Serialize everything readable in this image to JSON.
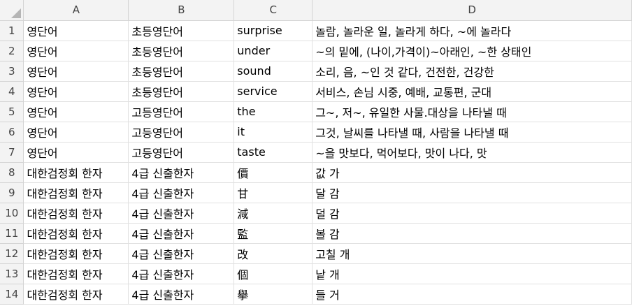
{
  "columns": [
    "A",
    "B",
    "C",
    "D"
  ],
  "rows": [
    {
      "num": "1",
      "a": "영단어",
      "b": "초등영단어",
      "c": "surprise",
      "d": "놀람, 놀라운 일, 놀라게 하다, ~에 놀라다"
    },
    {
      "num": "2",
      "a": "영단어",
      "b": "초등영단어",
      "c": "under",
      "d": "~의 밑에, (나이,가격이)~아래인, ~한 상태인"
    },
    {
      "num": "3",
      "a": "영단어",
      "b": "초등영단어",
      "c": "sound",
      "d": "소리, 음, ~인 것 같다, 건전한, 건강한"
    },
    {
      "num": "4",
      "a": "영단어",
      "b": "초등영단어",
      "c": "service",
      "d": "서비스, 손님 시중, 예배, 교통편, 군대"
    },
    {
      "num": "5",
      "a": "영단어",
      "b": "고등영단어",
      "c": "the",
      "d": "그~, 저~, 유일한 사물.대상을 나타낼 때"
    },
    {
      "num": "6",
      "a": "영단어",
      "b": "고등영단어",
      "c": "it",
      "d": "그것, 날씨를 나타낼 때, 사람을 나타낼 때"
    },
    {
      "num": "7",
      "a": "영단어",
      "b": "고등영단어",
      "c": "taste",
      "d": "~을 맛보다, 먹어보다, 맛이 나다, 맛"
    },
    {
      "num": "8",
      "a": "대한검정회 한자",
      "b": "4급 신출한자",
      "c": "價",
      "d": "값 가"
    },
    {
      "num": "9",
      "a": "대한검정회 한자",
      "b": "4급 신출한자",
      "c": "甘",
      "d": "달 감"
    },
    {
      "num": "10",
      "a": "대한검정회 한자",
      "b": "4급 신출한자",
      "c": "減",
      "d": "덜 감"
    },
    {
      "num": "11",
      "a": "대한검정회 한자",
      "b": "4급 신출한자",
      "c": "監",
      "d": "볼 감"
    },
    {
      "num": "12",
      "a": "대한검정회 한자",
      "b": "4급 신출한자",
      "c": "改",
      "d": "고칠 개"
    },
    {
      "num": "13",
      "a": "대한검정회 한자",
      "b": "4급 신출한자",
      "c": "個",
      "d": "낱 개"
    },
    {
      "num": "14",
      "a": "대한검정회 한자",
      "b": "4급 신출한자",
      "c": "擧",
      "d": "들 거"
    }
  ]
}
